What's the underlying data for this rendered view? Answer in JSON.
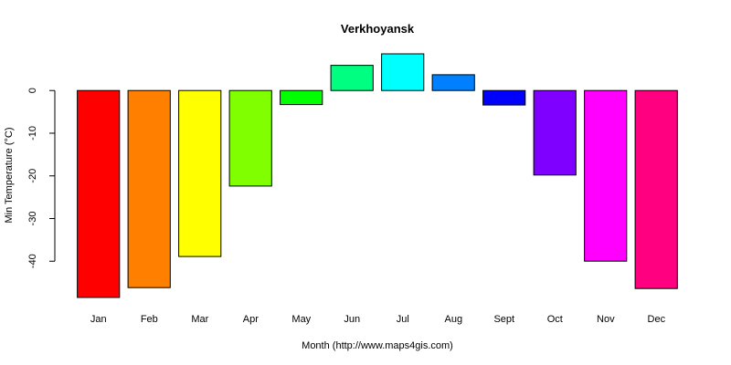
{
  "chart_data": {
    "type": "bar",
    "title": "Verkhoyansk",
    "xlabel": "Month (http://www.maps4gis.com)",
    "ylabel": "Min Temperature (°C)",
    "categories": [
      "Jan",
      "Feb",
      "Mar",
      "Apr",
      "May",
      "Jun",
      "Jul",
      "Aug",
      "Sept",
      "Oct",
      "Nov",
      "Dec"
    ],
    "values": [
      -48.5,
      -46.2,
      -38.9,
      -22.4,
      -3.3,
      5.9,
      8.6,
      3.7,
      -3.4,
      -19.8,
      -40.0,
      -46.4
    ],
    "colors": [
      "#FF0000",
      "#FF8000",
      "#FFFF00",
      "#80FF00",
      "#00FF00",
      "#00FF80",
      "#00FFFF",
      "#0080FF",
      "#0000FF",
      "#8000FF",
      "#FF00FF",
      "#FF0080"
    ],
    "yticks": [
      0,
      -10,
      -20,
      -30,
      -40
    ],
    "ylim": [
      -48.5,
      8.6
    ],
    "grid": false,
    "legend": "none"
  }
}
